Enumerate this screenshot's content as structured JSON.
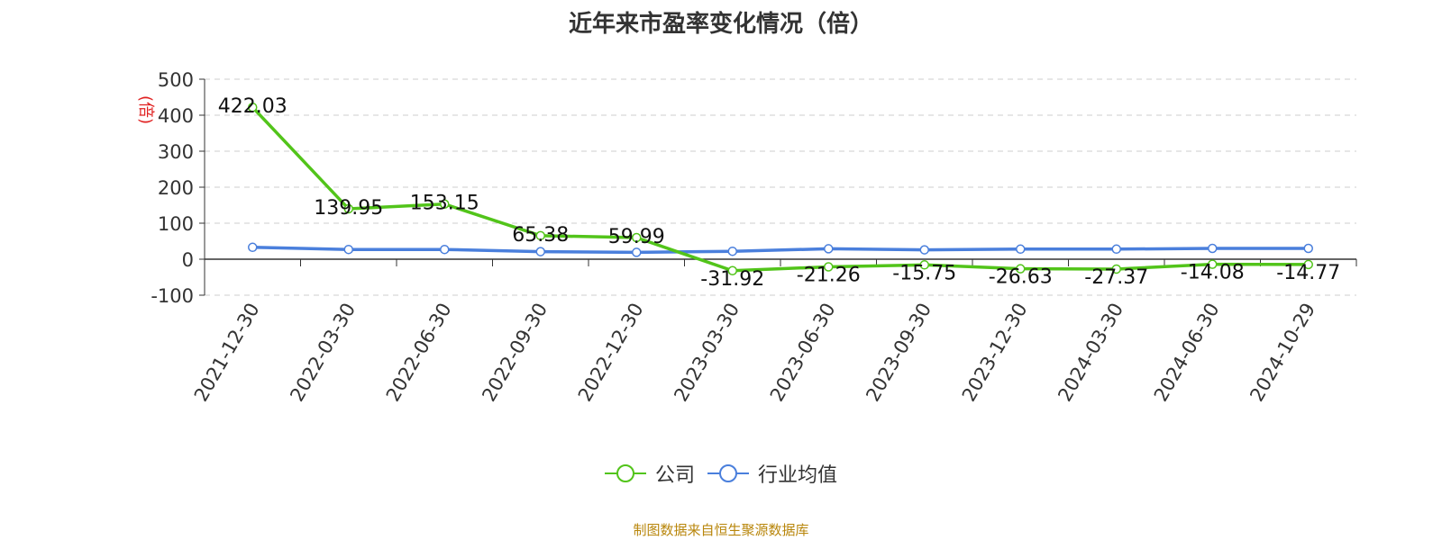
{
  "chart_data": {
    "type": "line",
    "title": "近年来市盈率变化情况（倍）",
    "ylabel": "(倍)",
    "xlabel": "",
    "ylim": [
      -100,
      500
    ],
    "yticks": [
      500,
      400,
      300,
      200,
      100,
      0,
      -100
    ],
    "grid": true,
    "legend_position": "bottom",
    "categories": [
      "2021-12-30",
      "2022-03-30",
      "2022-06-30",
      "2022-09-30",
      "2022-12-30",
      "2023-03-30",
      "2023-06-30",
      "2023-09-30",
      "2023-12-30",
      "2024-03-30",
      "2024-06-30",
      "2024-10-29"
    ],
    "series": [
      {
        "name": "公司",
        "color": "#52c41a",
        "values": [
          422.03,
          139.95,
          153.15,
          65.38,
          59.99,
          -31.92,
          -21.26,
          -15.75,
          -26.63,
          -27.37,
          -14.08,
          -14.77
        ],
        "labels": [
          "422.03",
          "139.95",
          "153.15",
          "65.38",
          "59.99",
          "-31.92",
          "-21.26",
          "-15.75",
          "-26.63",
          "-27.37",
          "-14.08",
          "-14.77"
        ]
      },
      {
        "name": "行业均值",
        "color": "#4a7fdc",
        "values": [
          33,
          27,
          27,
          21,
          19,
          22,
          29,
          26,
          28,
          28,
          30,
          30
        ]
      }
    ]
  },
  "source": "制图数据来自恒生聚源数据库"
}
